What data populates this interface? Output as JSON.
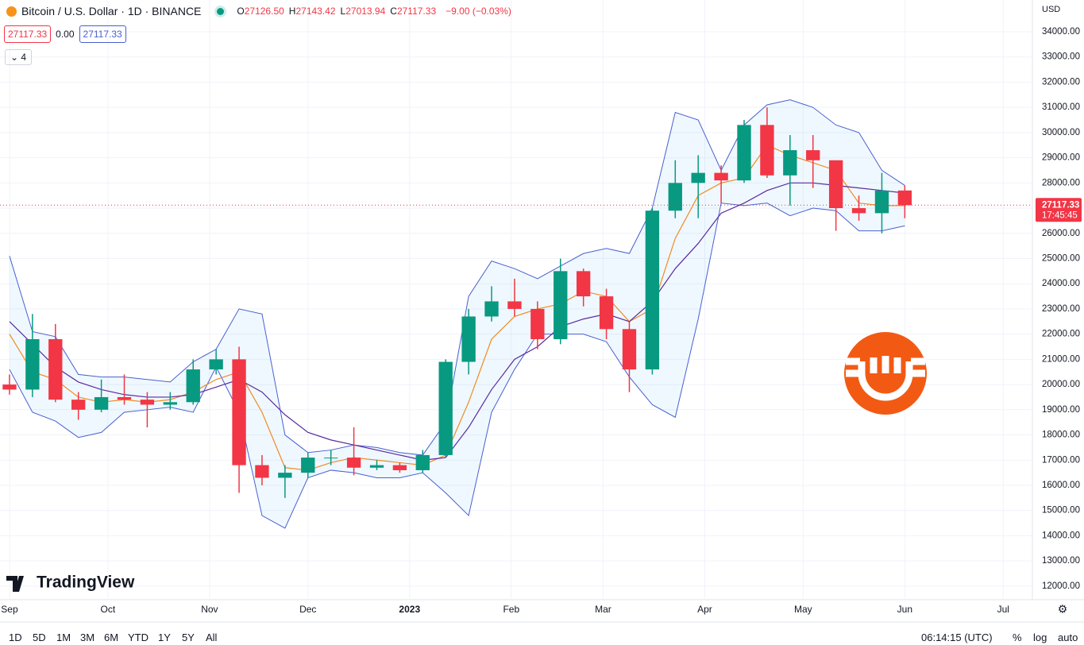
{
  "chart_data": {
    "type": "candlestick",
    "title": "Bitcoin / U.S. Dollar · 1D · BINANCE",
    "ohlc_legend": [
      {
        "key": "O",
        "text": "27126.50"
      },
      {
        "key": "H",
        "text": "27143.42"
      },
      {
        "key": "L",
        "text": "27013.94"
      },
      {
        "key": "C",
        "text": "27117.33"
      }
    ],
    "change": "−9.00 (−0.03%)",
    "indicator_values": [
      "27117.33",
      "0.00",
      "27117.33"
    ],
    "hidden_indicators": "4",
    "currency": "USD",
    "last_price": 27117.33,
    "countdown": "17:45:45",
    "x": [
      0,
      7,
      14,
      21,
      28,
      35,
      42,
      49,
      56,
      63,
      70,
      77,
      84,
      91,
      98,
      105,
      112,
      119,
      126,
      133,
      140,
      147,
      154,
      161,
      168,
      175,
      182,
      189,
      196,
      203,
      210,
      217,
      224,
      231,
      238,
      245,
      252,
      259,
      266,
      273
    ],
    "candles": {
      "up_color": "#089981",
      "down_color": "#f23645",
      "open": [
        20000,
        19800,
        21800,
        19400,
        19000,
        19500,
        19400,
        19200,
        19300,
        20600,
        21000,
        16800,
        16300,
        16500,
        17100,
        17100,
        16700,
        16800,
        16600,
        17200,
        20900,
        22700,
        23300,
        23000,
        21800,
        24500,
        23500,
        22200,
        20600,
        26900,
        28000,
        28400,
        28100,
        30300,
        28300,
        29300,
        28900,
        27000,
        26800,
        27700
      ],
      "high": [
        20400,
        22800,
        22400,
        19700,
        20200,
        20400,
        19700,
        19700,
        21000,
        21400,
        21500,
        17200,
        16800,
        17300,
        17400,
        18300,
        17000,
        16900,
        17400,
        21000,
        23000,
        23900,
        24200,
        23300,
        25000,
        24600,
        23800,
        22500,
        27000,
        28900,
        29100,
        28700,
        30500,
        31000,
        29900,
        29900,
        28900,
        27500,
        28400,
        27900
      ],
      "low": [
        19600,
        19500,
        19300,
        18600,
        18900,
        19200,
        18300,
        19000,
        19200,
        20400,
        15700,
        16000,
        15500,
        16300,
        16800,
        16400,
        16600,
        16500,
        16500,
        17100,
        20400,
        22500,
        22700,
        21400,
        21600,
        23100,
        21800,
        19700,
        20400,
        26600,
        26600,
        27200,
        28000,
        28200,
        27100,
        27800,
        26100,
        26500,
        26000,
        26600
      ],
      "close": [
        19800,
        21800,
        19400,
        19000,
        19500,
        19400,
        19200,
        19300,
        20600,
        21000,
        16800,
        16300,
        16500,
        17100,
        17100,
        16700,
        16800,
        16600,
        17200,
        20900,
        22700,
        23300,
        23000,
        21800,
        24500,
        23500,
        22200,
        20600,
        26900,
        28000,
        28400,
        28100,
        30300,
        28300,
        29300,
        28900,
        27000,
        26800,
        27700,
        27117.33
      ]
    },
    "bands": {
      "color": "#4a5fd0",
      "fill": "rgba(33,150,243,0.07)",
      "upper": [
        25100,
        22100,
        21900,
        20400,
        20300,
        20300,
        20200,
        20100,
        20900,
        21400,
        23000,
        22800,
        18000,
        17300,
        17400,
        17600,
        17500,
        17300,
        17200,
        18500,
        23500,
        24900,
        24600,
        24200,
        24700,
        25200,
        25400,
        25200,
        27000,
        30800,
        30500,
        28500,
        30300,
        31100,
        31300,
        31000,
        30300,
        30000,
        28500,
        27900
      ],
      "lower": [
        20600,
        18900,
        18550,
        17900,
        18100,
        18900,
        19000,
        19100,
        18900,
        20700,
        18900,
        14800,
        14300,
        16300,
        16600,
        16500,
        16300,
        16300,
        16500,
        15700,
        14800,
        18900,
        20600,
        22000,
        22000,
        22000,
        21700,
        20300,
        19200,
        18700,
        22600,
        27200,
        27100,
        27200,
        26700,
        27000,
        26900,
        26100,
        26100,
        26300
      ]
    },
    "overlays": [
      {
        "color": "#f08a24",
        "values": [
          22000,
          20500,
          20200,
          19500,
          19300,
          19400,
          19300,
          19400,
          19700,
          20200,
          20500,
          18900,
          16700,
          16600,
          16900,
          17100,
          17000,
          16900,
          16800,
          17200,
          19300,
          21800,
          22700,
          23000,
          23200,
          23700,
          23500,
          22500,
          23000,
          25800,
          27500,
          28000,
          28200,
          29500,
          29100,
          28800,
          28500,
          27200,
          27100,
          27100
        ]
      },
      {
        "color": "#5b2a9e",
        "values": [
          22500,
          21600,
          20700,
          20100,
          19800,
          19600,
          19500,
          19500,
          19600,
          19900,
          20200,
          19700,
          18800,
          18100,
          17800,
          17600,
          17400,
          17200,
          17000,
          17100,
          18300,
          19800,
          21000,
          21500,
          22300,
          22600,
          22800,
          22500,
          23300,
          24600,
          25600,
          26800,
          27200,
          27700,
          28000,
          28000,
          27900,
          27800,
          27700,
          27600
        ]
      }
    ],
    "xlim": [
      -2.9,
      311.9
    ],
    "xticks": [
      {
        "value": 0,
        "label": "Sep"
      },
      {
        "value": 30,
        "label": "Oct"
      },
      {
        "value": 61,
        "label": "Nov"
      },
      {
        "value": 91,
        "label": "Dec"
      },
      {
        "value": 122,
        "label": "2023"
      },
      {
        "value": 153,
        "label": "Feb"
      },
      {
        "value": 181,
        "label": "Mar"
      },
      {
        "value": 212,
        "label": "Apr"
      },
      {
        "value": 242,
        "label": "May"
      },
      {
        "value": 273,
        "label": "Jun"
      },
      {
        "value": 303,
        "label": "Jul"
      }
    ],
    "ylim": [
      11460,
      35260
    ],
    "yticks": [
      {
        "value": 12000,
        "label": "12000.00"
      },
      {
        "value": 13000,
        "label": "13000.00"
      },
      {
        "value": 14000,
        "label": "14000.00"
      },
      {
        "value": 15000,
        "label": "15000.00"
      },
      {
        "value": 16000,
        "label": "16000.00"
      },
      {
        "value": 17000,
        "label": "17000.00"
      },
      {
        "value": 18000,
        "label": "18000.00"
      },
      {
        "value": 19000,
        "label": "19000.00"
      },
      {
        "value": 20000,
        "label": "20000.00"
      },
      {
        "value": 21000,
        "label": "21000.00"
      },
      {
        "value": 22000,
        "label": "22000.00"
      },
      {
        "value": 23000,
        "label": "23000.00"
      },
      {
        "value": 24000,
        "label": "24000.00"
      },
      {
        "value": 25000,
        "label": "25000.00"
      },
      {
        "value": 26000,
        "label": "26000.00"
      },
      {
        "value": 27000,
        "label": "27000.00"
      },
      {
        "value": 28000,
        "label": "28000.00"
      },
      {
        "value": 29000,
        "label": "29000.00"
      },
      {
        "value": 30000,
        "label": "30000.00"
      },
      {
        "value": 31000,
        "label": "31000.00"
      },
      {
        "value": 32000,
        "label": "32000.00"
      },
      {
        "value": 33000,
        "label": "33000.00"
      },
      {
        "value": 34000,
        "label": "34000.00"
      }
    ],
    "grid": true,
    "logo": "TradingView",
    "ranges": [
      "1D",
      "5D",
      "1M",
      "3M",
      "6M",
      "YTD",
      "1Y",
      "5Y",
      "All"
    ],
    "clock": "06:14:15 (UTC)",
    "scale_options": [
      "%",
      "log",
      "auto"
    ]
  }
}
